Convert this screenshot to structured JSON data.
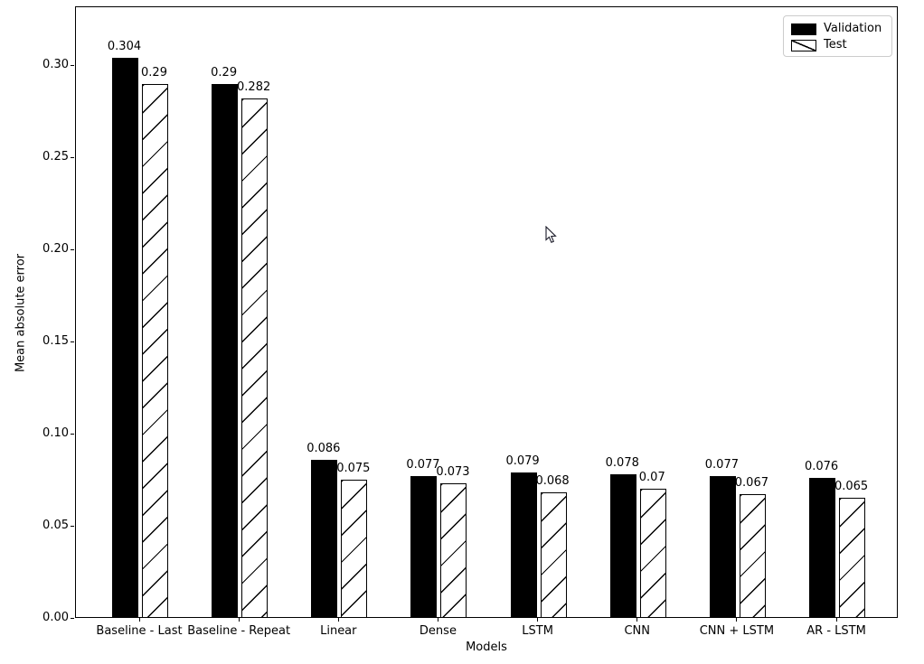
{
  "chart_data": {
    "type": "bar",
    "title": "",
    "xlabel": "Models",
    "ylabel": "Mean absolute error",
    "categories": [
      "Baseline - Last",
      "Baseline - Repeat",
      "Linear",
      "Dense",
      "LSTM",
      "CNN",
      "CNN + LSTM",
      "AR - LSTM"
    ],
    "series": [
      {
        "name": "Validation",
        "style": "solid-black",
        "values": [
          0.304,
          0.29,
          0.086,
          0.077,
          0.079,
          0.078,
          0.077,
          0.076
        ],
        "labels": [
          "0.304",
          "0.29",
          "0.086",
          "0.077",
          "0.079",
          "0.078",
          "0.077",
          "0.076"
        ]
      },
      {
        "name": "Test",
        "style": "white-diagonal-hatch",
        "values": [
          0.29,
          0.282,
          0.075,
          0.073,
          0.068,
          0.07,
          0.067,
          0.065
        ],
        "labels": [
          "0.29",
          "0.282",
          "0.075",
          "0.073",
          "0.068",
          "0.07",
          "0.067",
          "0.065"
        ]
      }
    ],
    "ylim": [
      0,
      0.332
    ],
    "yticks": [
      0.0,
      0.05,
      0.1,
      0.15,
      0.2,
      0.25,
      0.3
    ],
    "ytick_labels": [
      "0.00",
      "0.05",
      "0.10",
      "0.15",
      "0.20",
      "0.25",
      "0.30"
    ],
    "legend_position": "upper right",
    "grid": false,
    "bar_value_labels_shown": true,
    "colors": {
      "validation_fill": "#000000",
      "test_fill": "#ffffff",
      "hatch": "#000000",
      "axes": "#000000",
      "legend_border": "#cccccc",
      "background": "#ffffff"
    }
  },
  "cursor": {
    "type": "arrow-pointer"
  }
}
